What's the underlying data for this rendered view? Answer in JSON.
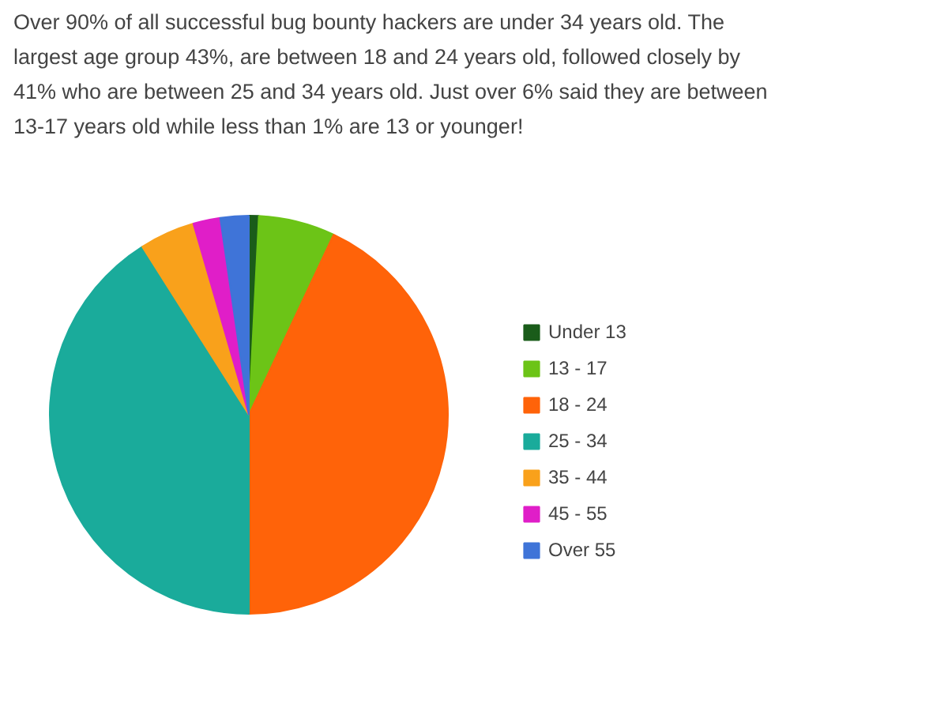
{
  "chart_data": {
    "type": "pie",
    "title": "Over 90% of all successful bug bounty hackers are under 34 years old. The largest age group 43%, are between 18 and 24 years old, followed closely by 41% who are between 25 and 34 years old. Just over 6% said they are between 13-17 years old while less than 1% are 13 or younger!",
    "categories": [
      "Under 13",
      "13 - 17",
      "18 - 24",
      "25 - 34",
      "35 - 44",
      "45 - 55",
      "Over 55"
    ],
    "values": [
      0.8,
      6.2,
      43,
      41,
      4.5,
      2.2,
      2.3
    ],
    "colors": [
      "#1a5c1a",
      "#6cc417",
      "#ff6309",
      "#1aab9b",
      "#f9a11b",
      "#e01ec8",
      "#3f74d8"
    ],
    "legend": "right"
  }
}
